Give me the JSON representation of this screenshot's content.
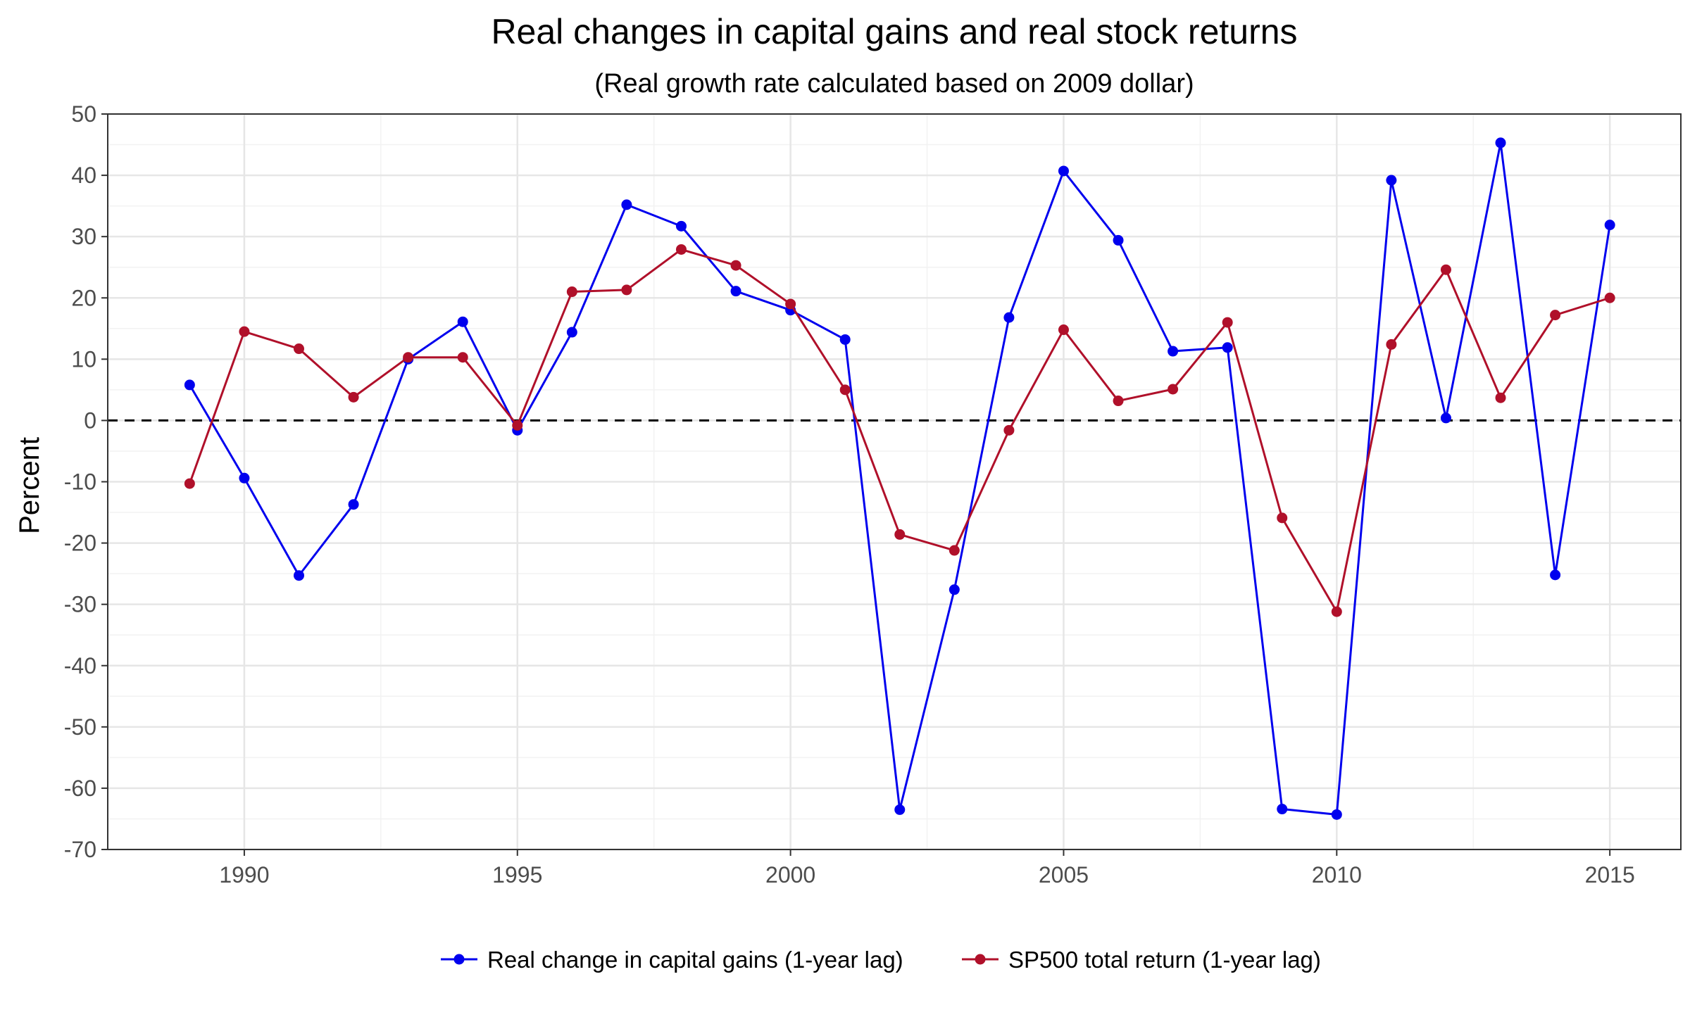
{
  "chart_data": {
    "type": "line",
    "title": "Real changes in capital gains and real stock returns",
    "subtitle": "(Real growth rate calculated based on 2009 dollar)",
    "xlabel": "",
    "ylabel": "Percent",
    "xlim": [
      1987.5,
      2016.3
    ],
    "ylim": [
      -70,
      50
    ],
    "x_ticks": [
      1990,
      1995,
      2000,
      2005,
      2010,
      2015
    ],
    "y_ticks": [
      50,
      40,
      30,
      20,
      10,
      0,
      -10,
      -20,
      -30,
      -40,
      -50,
      -60,
      -70
    ],
    "grid": true,
    "reference_line": {
      "y": 0,
      "style": "dashed",
      "color": "#000000"
    },
    "legend_position": "bottom",
    "x": [
      1989,
      1990,
      1991,
      1992,
      1993,
      1994,
      1995,
      1996,
      1997,
      1998,
      1999,
      2000,
      2001,
      2002,
      2003,
      2004,
      2005,
      2006,
      2007,
      2008,
      2009,
      2010,
      2011,
      2012,
      2013,
      2014,
      2015
    ],
    "series": [
      {
        "name": "Real change in capital gains (1-year lag)",
        "color": "#0000ee",
        "values": [
          5.8,
          -9.4,
          -25.3,
          -13.7,
          10.0,
          16.1,
          -1.6,
          14.4,
          35.2,
          31.7,
          21.1,
          18.0,
          13.2,
          -63.5,
          -27.6,
          16.8,
          40.7,
          29.4,
          11.3,
          11.9,
          -63.4,
          -64.3,
          39.2,
          0.4,
          45.3,
          -25.2,
          31.9
        ]
      },
      {
        "name": "SP500 total return (1-year lag)",
        "color": "#b0102a",
        "values": [
          -10.3,
          14.5,
          11.7,
          3.8,
          10.3,
          10.3,
          -0.8,
          21.0,
          21.3,
          27.9,
          25.3,
          19.0,
          5.0,
          -18.6,
          -21.2,
          -1.6,
          14.8,
          3.2,
          5.1,
          16.0,
          -15.9,
          -31.2,
          12.4,
          24.6,
          3.7,
          17.2,
          20.0
        ]
      }
    ]
  }
}
